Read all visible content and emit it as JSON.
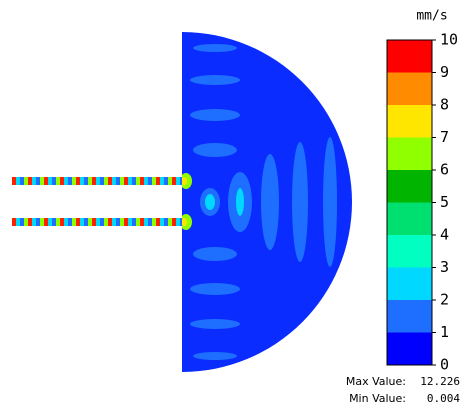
{
  "colorbar": {
    "unit": "mm/s",
    "ticks": [
      0,
      1,
      2,
      3,
      4,
      5,
      6,
      7,
      8,
      9,
      10
    ],
    "colors": [
      "#0000ff",
      "#1e6eff",
      "#00d8ff",
      "#00ffc0",
      "#00e070",
      "#00b400",
      "#90ff00",
      "#ffe600",
      "#ff8c00",
      "#ff0000"
    ]
  },
  "stats": {
    "max_label": "Max Value:",
    "max_value": 12.226,
    "min_label": "Min Value:",
    "min_value": 0.004
  }
}
